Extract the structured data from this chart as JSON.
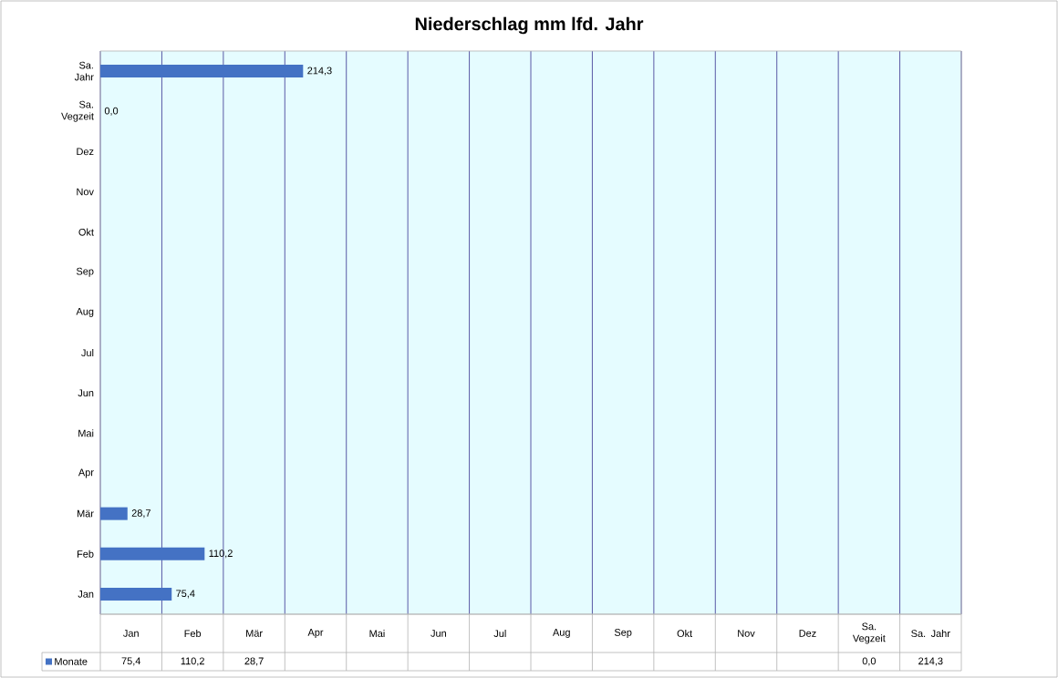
{
  "chart_data": {
    "type": "bar",
    "orientation": "horizontal",
    "title": "Niederschlag mm lfd. Jahr",
    "categories": [
      "Sa. Jahr",
      "Sa. Vegzeit",
      "Dez",
      "Nov",
      "Okt",
      "Sep",
      "Aug",
      "Jul",
      "Jun",
      "Mai",
      "Apr",
      "Mär",
      "Feb",
      "Jan"
    ],
    "series": [
      {
        "name": "Monate",
        "color": "#4472c4",
        "values": [
          214.3,
          0.0,
          null,
          null,
          null,
          null,
          null,
          null,
          null,
          null,
          null,
          28.7,
          110.2,
          75.4
        ],
        "value_labels": [
          "214,3",
          "0,0",
          null,
          null,
          null,
          null,
          null,
          null,
          null,
          null,
          null,
          "28,7",
          "110,2",
          "75,4"
        ]
      }
    ],
    "xlim": [
      0,
      910
    ],
    "xticks": [
      {
        "value": 0,
        "label": null
      },
      {
        "value": 65,
        "label": null
      },
      {
        "value": 130,
        "label": null
      },
      {
        "value": 195,
        "label": null
      },
      {
        "value": 260,
        "label": null
      },
      {
        "value": 325,
        "label": null
      },
      {
        "value": 390,
        "label": null
      },
      {
        "value": 455,
        "label": null
      },
      {
        "value": 520,
        "label": null
      },
      {
        "value": 585,
        "label": null
      },
      {
        "value": 650,
        "label": null
      },
      {
        "value": 715,
        "label": null
      },
      {
        "value": 780,
        "label": null
      },
      {
        "value": 845,
        "label": null
      },
      {
        "value": 910,
        "label": null
      }
    ],
    "grid": "x",
    "legend": "bottom",
    "tick_labels": "y"
  }
}
